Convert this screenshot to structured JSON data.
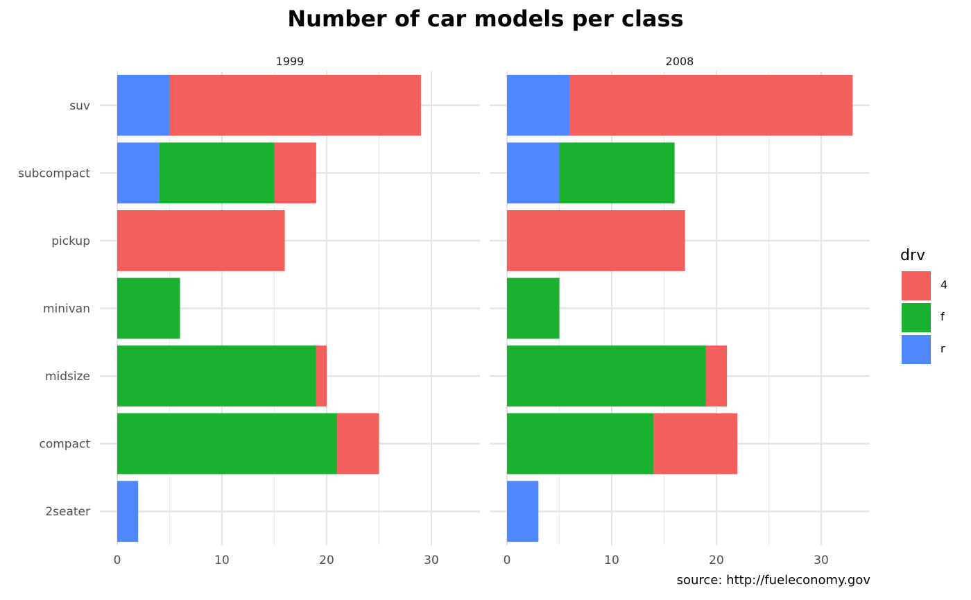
{
  "title": "Number of car models per class",
  "caption": "source: http://fueleconomy.gov",
  "legend": {
    "title": "drv",
    "items": [
      {
        "label": "4",
        "color": "#F25F5C"
      },
      {
        "label": "f",
        "color": "#19B12F"
      },
      {
        "label": "r",
        "color": "#4F87FF"
      }
    ]
  },
  "chart_data": {
    "type": "bar",
    "orientation": "horizontal",
    "stacked": true,
    "categories": [
      "2seater",
      "compact",
      "midsize",
      "minivan",
      "pickup",
      "subcompact",
      "suv"
    ],
    "xlim": [
      0,
      34
    ],
    "xticks": [
      0,
      10,
      20,
      30
    ],
    "grid": true,
    "legend_position": "right",
    "panels": [
      {
        "label": "1999",
        "series": [
          {
            "name": "r",
            "values": [
              2,
              0,
              0,
              0,
              0,
              4,
              5
            ]
          },
          {
            "name": "f",
            "values": [
              0,
              21,
              19,
              6,
              0,
              11,
              0
            ]
          },
          {
            "name": "4",
            "values": [
              0,
              4,
              1,
              0,
              16,
              4,
              24
            ]
          }
        ]
      },
      {
        "label": "2008",
        "series": [
          {
            "name": "r",
            "values": [
              3,
              0,
              0,
              0,
              0,
              5,
              6
            ]
          },
          {
            "name": "f",
            "values": [
              0,
              14,
              19,
              5,
              0,
              11,
              0
            ]
          },
          {
            "name": "4",
            "values": [
              0,
              8,
              2,
              0,
              17,
              0,
              27
            ]
          }
        ]
      }
    ]
  }
}
